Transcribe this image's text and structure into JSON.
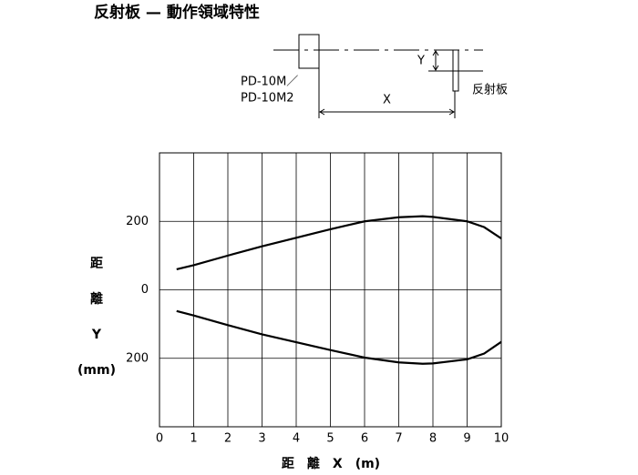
{
  "title": "反射板 — 動作領域特性",
  "diagram": {
    "sensor_label_lines": [
      "PD-10M／",
      "PD-10M2"
    ],
    "x_label": "X",
    "y_label": "Y",
    "reflector_label": "反射板"
  },
  "chart_data": {
    "type": "line",
    "x_label": "距　離　X　(m)",
    "y_label_lines": [
      "距",
      "離",
      "Y",
      "(mm)"
    ],
    "x": [
      0.5,
      1,
      2,
      3,
      4,
      5,
      6,
      7,
      7.7,
      8,
      9,
      9.5,
      10
    ],
    "series": [
      {
        "color": "#000000",
        "values": [
          60,
          72,
          100,
          127,
          152,
          177,
          200,
          212,
          215,
          213,
          200,
          183,
          150
        ]
      },
      {
        "color": "#000000",
        "values": [
          -62,
          -75,
          -103,
          -130,
          -153,
          -176,
          -198,
          -212,
          -216,
          -215,
          -203,
          -186,
          -152
        ]
      }
    ],
    "xlim": [
      0,
      10
    ],
    "xticks": [
      0,
      1,
      2,
      3,
      4,
      5,
      6,
      7,
      8,
      9,
      10
    ],
    "ylim": [
      -400,
      400
    ],
    "yticks": [
      200,
      0,
      {
        "value": -200,
        "label": "200"
      }
    ],
    "grid": true
  }
}
